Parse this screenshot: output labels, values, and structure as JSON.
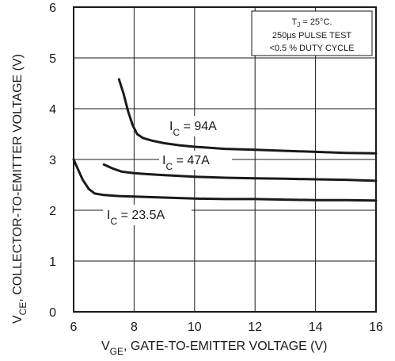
{
  "chart_data": {
    "type": "line",
    "title": "",
    "xlabel": {
      "main": "V",
      "sub": "GE",
      "rest": ", GATE-TO-EMITTER VOLTAGE (V)"
    },
    "ylabel": {
      "main": "V",
      "sub": "CE",
      "rest": ", COLLECTOR-TO-EMITTER VOLTAGE (V)"
    },
    "xlim": [
      6,
      16
    ],
    "ylim": [
      0,
      6
    ],
    "xticks": [
      "6",
      "8",
      "10",
      "12",
      "14",
      "16"
    ],
    "yticks": [
      "0",
      "1",
      "2",
      "3",
      "4",
      "5",
      "6"
    ],
    "grid": true,
    "series": [
      {
        "name": "94A",
        "label": {
          "main": "I",
          "sub": "C",
          "rest": " = 94A"
        },
        "x": [
          7.5,
          7.65,
          7.8,
          7.95,
          8.1,
          8.3,
          8.6,
          9.0,
          9.5,
          10,
          11,
          12,
          13,
          14,
          15,
          16
        ],
        "y": [
          4.58,
          4.3,
          3.95,
          3.68,
          3.5,
          3.42,
          3.37,
          3.32,
          3.28,
          3.25,
          3.21,
          3.19,
          3.17,
          3.15,
          3.13,
          3.12
        ]
      },
      {
        "name": "47A",
        "label": {
          "main": "I",
          "sub": "C",
          "rest": " = 47A"
        },
        "x": [
          7.0,
          7.3,
          7.6,
          8.0,
          8.5,
          9,
          10,
          11,
          12,
          13,
          14,
          15,
          16
        ],
        "y": [
          2.9,
          2.82,
          2.76,
          2.73,
          2.71,
          2.69,
          2.66,
          2.64,
          2.63,
          2.62,
          2.61,
          2.6,
          2.58
        ]
      },
      {
        "name": "23.5A",
        "label": {
          "main": "I",
          "sub": "C",
          "rest": " = 23.5A"
        },
        "x": [
          6.0,
          6.15,
          6.3,
          6.5,
          6.7,
          7.0,
          7.5,
          8.0,
          9,
          10,
          11,
          12,
          13,
          14,
          15,
          16
        ],
        "y": [
          3.0,
          2.8,
          2.6,
          2.42,
          2.33,
          2.3,
          2.28,
          2.27,
          2.25,
          2.23,
          2.22,
          2.22,
          2.21,
          2.2,
          2.2,
          2.19
        ]
      }
    ],
    "annotation": {
      "line1": {
        "main": "T",
        "sub": "J",
        "rest": " = 25°C."
      },
      "line2": "250µs PULSE TEST",
      "line3": "<0.5 % DUTY CYCLE"
    }
  }
}
